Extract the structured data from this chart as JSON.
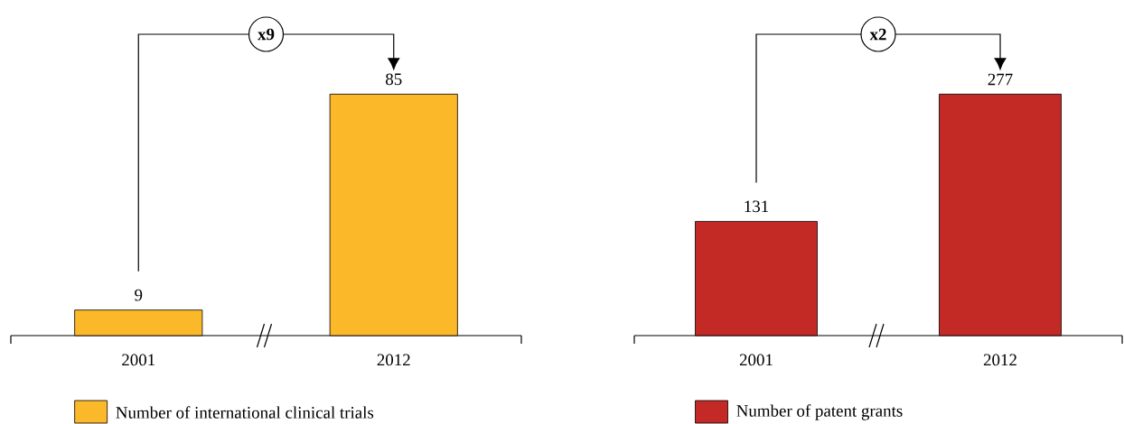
{
  "chart_data": [
    {
      "type": "bar",
      "categories": [
        "2001",
        "2012"
      ],
      "series": [
        {
          "name": "Number of international clinical trials",
          "color": "#fbb829",
          "values": [
            9,
            85
          ]
        }
      ],
      "data_labels": true,
      "annotations": [
        "x9"
      ],
      "legend": "bottom"
    },
    {
      "type": "bar",
      "categories": [
        "2001",
        "2012"
      ],
      "series": [
        {
          "name": "Number of patent grants",
          "color": "#c32a26",
          "values": [
            131,
            277
          ]
        }
      ],
      "data_labels": true,
      "annotations": [
        "x2"
      ],
      "legend": "bottom"
    }
  ]
}
